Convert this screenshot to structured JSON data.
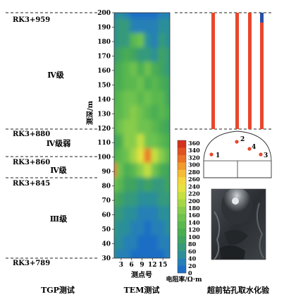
{
  "tgp": {
    "stations": [
      "RK3+959",
      "RK3+880",
      "RK3+860",
      "RK3+845",
      "RK3+789"
    ],
    "grades": [
      "Ⅳ级",
      "Ⅳ级弱",
      "Ⅳ级",
      "Ⅲ级"
    ],
    "caption": "TGP测试"
  },
  "tem": {
    "caption": "TEM测试",
    "xlabel": "测点号",
    "ylabel": "测深/m",
    "xticks": [
      "3",
      "6",
      "9",
      "12",
      "15"
    ],
    "yticks": [
      "200",
      "190",
      "180",
      "170",
      "160",
      "150",
      "140",
      "130",
      "120",
      "110",
      "100",
      "90",
      "80",
      "70",
      "60",
      "50",
      "40",
      "30"
    ]
  },
  "colorbar": {
    "label": "电阻率/Ω·m",
    "ticks": [
      "360",
      "340",
      "320",
      "300",
      "280",
      "260",
      "240",
      "220",
      "200",
      "180",
      "160",
      "140",
      "120",
      "100",
      "80",
      "60",
      "40",
      "20",
      "0"
    ],
    "colors": [
      "#d3301e",
      "#e05220",
      "#ea7326",
      "#f29a2c",
      "#f5bd35",
      "#f3d63c",
      "#e4e33f",
      "#c6e03f",
      "#a6d645",
      "#88cc4c",
      "#6ec24f",
      "#5ab84f",
      "#4aad52",
      "#3fa361",
      "#359a7c",
      "#2c8f98",
      "#2580b6",
      "#1e6ec4"
    ]
  },
  "drill": {
    "caption": "超前钻孔取水化验",
    "hole_labels": [
      "1",
      "2",
      "3",
      "4"
    ],
    "colors": {
      "rod": "#e8472b",
      "rod_top": "#2a4fa8",
      "dot": "#e8472b"
    }
  },
  "chart_data": {
    "type": "heatmap",
    "x": [
      1,
      3,
      5,
      7,
      9,
      11,
      13,
      15,
      17
    ],
    "y": [
      200,
      190,
      180,
      170,
      160,
      150,
      140,
      130,
      120,
      110,
      100,
      90,
      80,
      70,
      60,
      50,
      40,
      30
    ],
    "values": [
      [
        30,
        40,
        20,
        15,
        10,
        10,
        15,
        20,
        25
      ],
      [
        50,
        70,
        60,
        30,
        25,
        20,
        30,
        50,
        40
      ],
      [
        40,
        60,
        70,
        130,
        150,
        40,
        30,
        60,
        50
      ],
      [
        60,
        80,
        100,
        90,
        70,
        60,
        50,
        80,
        60
      ],
      [
        90,
        100,
        120,
        140,
        110,
        150,
        100,
        80,
        60
      ],
      [
        100,
        110,
        130,
        120,
        140,
        110,
        120,
        100,
        80
      ],
      [
        110,
        120,
        140,
        150,
        130,
        140,
        120,
        130,
        90
      ],
      [
        120,
        130,
        150,
        160,
        140,
        130,
        110,
        120,
        100
      ],
      [
        110,
        140,
        160,
        170,
        150,
        140,
        130,
        110,
        90
      ],
      [
        90,
        110,
        170,
        160,
        200,
        150,
        140,
        130,
        110
      ],
      [
        100,
        120,
        150,
        180,
        220,
        300,
        200,
        160,
        120
      ],
      [
        300,
        150,
        110,
        120,
        160,
        200,
        140,
        110,
        90
      ],
      [
        140,
        120,
        90,
        80,
        70,
        80,
        60,
        70,
        80
      ],
      [
        100,
        90,
        70,
        60,
        50,
        40,
        50,
        60,
        70
      ],
      [
        70,
        60,
        50,
        40,
        30,
        20,
        30,
        40,
        50
      ],
      [
        60,
        50,
        40,
        30,
        20,
        15,
        20,
        30,
        40
      ],
      [
        50,
        40,
        30,
        20,
        15,
        10,
        15,
        20,
        30
      ],
      [
        40,
        30,
        20,
        15,
        10,
        10,
        10,
        15,
        20
      ]
    ],
    "xlabel": "测点号",
    "ylabel": "测深/m",
    "ylim": [
      30,
      200
    ],
    "zlim": [
      0,
      360
    ],
    "zlabel": "电阻率/Ω·m"
  }
}
